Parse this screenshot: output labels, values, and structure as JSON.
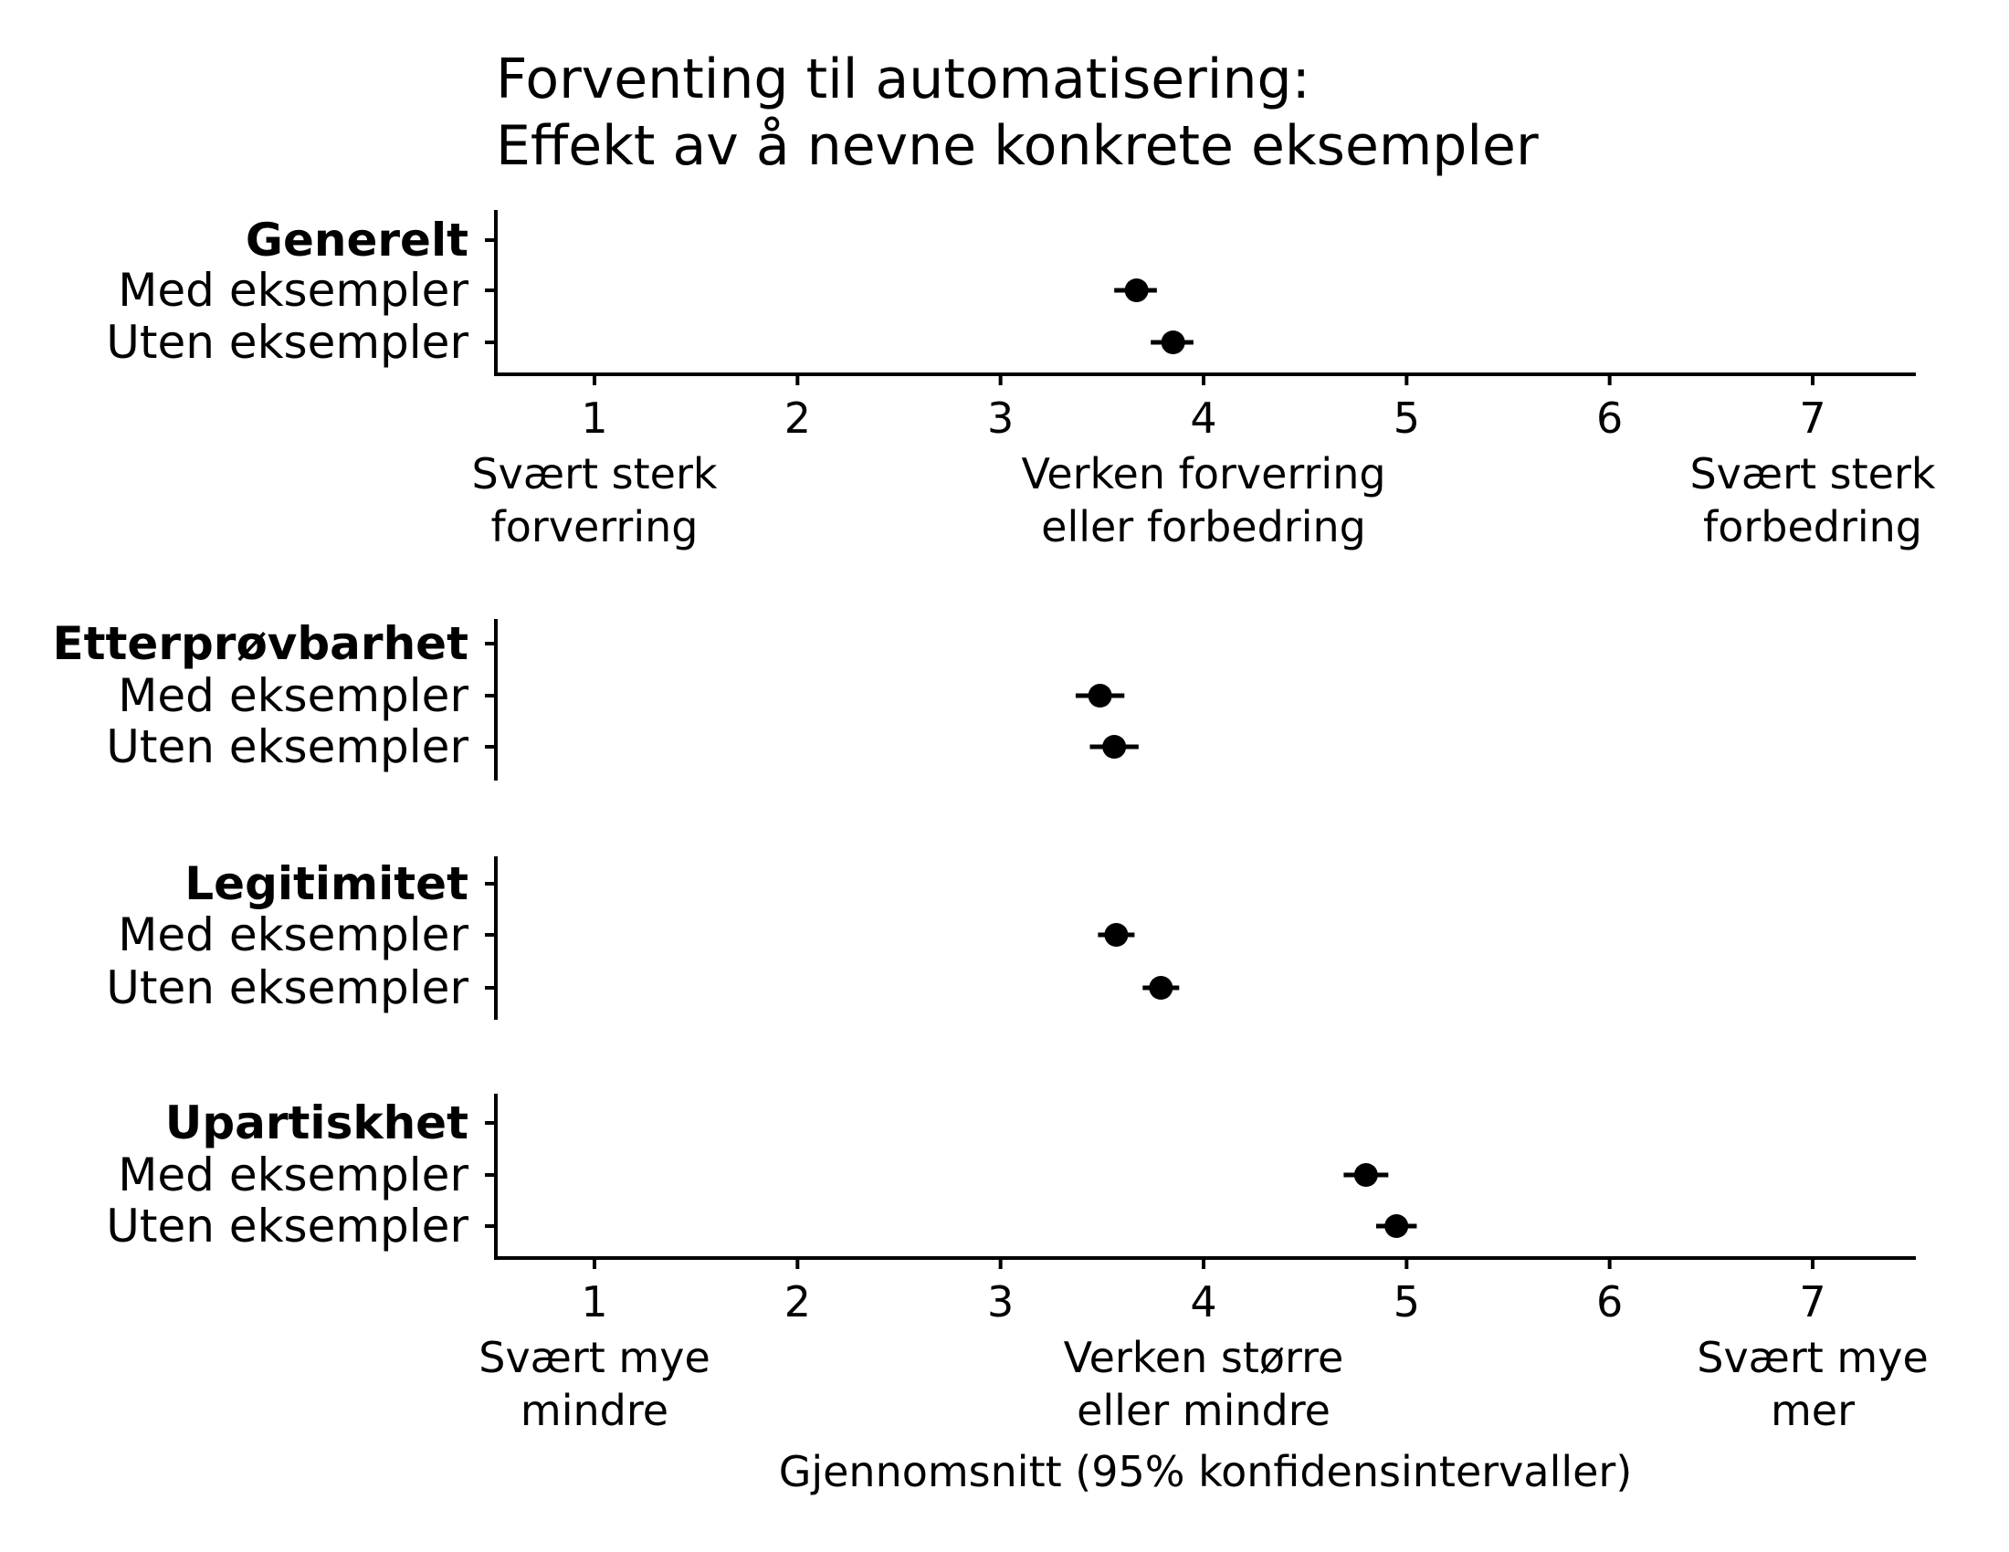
{
  "chart_data": {
    "type": "dot",
    "title_lines": [
      "Forventing til automatisering:",
      "Effekt av å nevne konkrete eksempler"
    ],
    "xlabel": "Gjennomsnitt (95% konfidensintervaller)",
    "xlim": [
      0.5,
      7.5
    ],
    "xticks": [
      "1",
      "2",
      "3",
      "4",
      "5",
      "6",
      "7"
    ],
    "anchors_top": [
      {
        "value": 1,
        "lines": [
          "Svært sterk",
          "forverring"
        ]
      },
      {
        "value": 4,
        "lines": [
          "Verken forverring",
          "eller forbedring"
        ]
      },
      {
        "value": 7,
        "lines": [
          "Svært sterk",
          "forbedring"
        ]
      }
    ],
    "anchors_bottom": [
      {
        "value": 1,
        "lines": [
          "Svært mye",
          "mindre"
        ]
      },
      {
        "value": 4,
        "lines": [
          "Verken større",
          "eller mindre"
        ]
      },
      {
        "value": 7,
        "lines": [
          "Svært mye",
          "mer"
        ]
      }
    ],
    "panels": [
      {
        "heading": "Generelt",
        "rows": [
          {
            "label": "Med eksempler",
            "mean": 3.67,
            "lo": 3.56,
            "hi": 3.77
          },
          {
            "label": "Uten eksempler",
            "mean": 3.85,
            "lo": 3.74,
            "hi": 3.95
          }
        ]
      },
      {
        "heading": "Etterprøvbarhet",
        "rows": [
          {
            "label": "Med eksempler",
            "mean": 3.49,
            "lo": 3.37,
            "hi": 3.61
          },
          {
            "label": "Uten eksempler",
            "mean": 3.56,
            "lo": 3.44,
            "hi": 3.68
          }
        ]
      },
      {
        "heading": "Legitimitet",
        "rows": [
          {
            "label": "Med eksempler",
            "mean": 3.57,
            "lo": 3.48,
            "hi": 3.66
          },
          {
            "label": "Uten eksempler",
            "mean": 3.79,
            "lo": 3.7,
            "hi": 3.88
          }
        ]
      },
      {
        "heading": "Upartiskhet",
        "rows": [
          {
            "label": "Med eksempler",
            "mean": 4.8,
            "lo": 4.69,
            "hi": 4.91
          },
          {
            "label": "Uten eksempler",
            "mean": 4.95,
            "lo": 4.85,
            "hi": 5.05
          }
        ]
      }
    ]
  }
}
